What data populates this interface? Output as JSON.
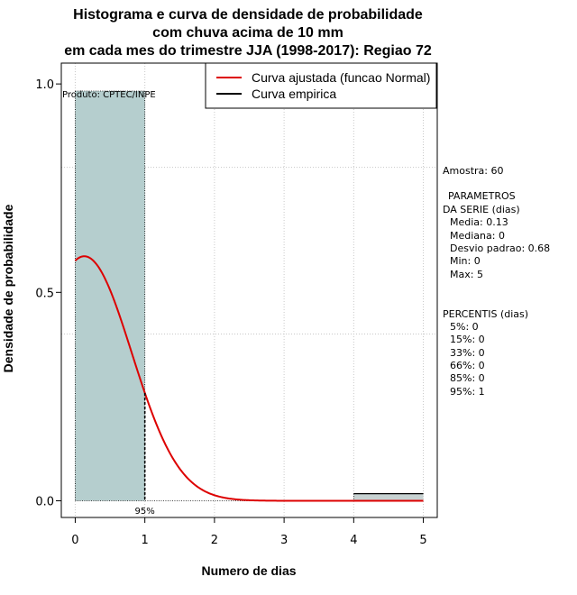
{
  "chart_data": {
    "type": "histogram",
    "title_lines": [
      "Histograma e curva de densidade de probabilidade",
      "com chuva acima de 10 mm",
      "em cada mes do trimestre JJA (1998-2017): Regiao 72"
    ],
    "xlabel": "Numero de dias",
    "ylabel": "Densidade de probabilidade",
    "xlim": [
      -0.2,
      5.2
    ],
    "ylim": [
      -0.04,
      1.05
    ],
    "x_ticks": [
      0,
      1,
      2,
      3,
      4,
      5
    ],
    "x_tick_labels": [
      "0",
      "1",
      "2",
      "3",
      "4",
      "5"
    ],
    "y_ticks": [
      0.0,
      0.5,
      1.0
    ],
    "y_tick_labels": [
      "0.0",
      "0.5",
      "1.0"
    ],
    "grid_x": [
      0,
      1,
      2,
      3,
      4,
      5
    ],
    "grid_y": [
      0.4,
      0.8
    ],
    "bars": [
      {
        "x0": 0,
        "x1": 1,
        "density": 0.983
      },
      {
        "x0": 4,
        "x1": 5,
        "density": 0.017
      }
    ],
    "bar_color": "#b5cece",
    "bar2_color": "#c8d2d2",
    "normal_curve": {
      "name": "Curva ajustada (funcao Normal)",
      "color": "#dd0000",
      "mean": 0.13,
      "sd": 0.68,
      "x_range": [
        0,
        2.45
      ]
    },
    "empirical_curve": {
      "name": "Curva empirica",
      "color": "#000000"
    },
    "percentile_marker": {
      "x": 1,
      "label": "95%"
    },
    "legend": {
      "position": "top-right",
      "entries": [
        "Curva ajustada (funcao Normal)",
        "Curva empirica"
      ]
    },
    "product_label": "Produto: CPTEC/INPE",
    "stats": {
      "amostra": "Amostra: 60",
      "param_header_1": "PARAMETROS",
      "param_header_2": "DA SERIE (dias)",
      "media": "Media: 0.13",
      "mediana": "Mediana: 0",
      "desvio": "Desvio padrao: 0.68",
      "min": "Min: 0",
      "max": "Max: 5",
      "percentis_header": "PERCENTIS (dias)",
      "percentis": [
        "5%: 0",
        "15%: 0",
        "33%: 0",
        "66%: 0",
        "85%: 0",
        "95%: 1"
      ]
    }
  }
}
